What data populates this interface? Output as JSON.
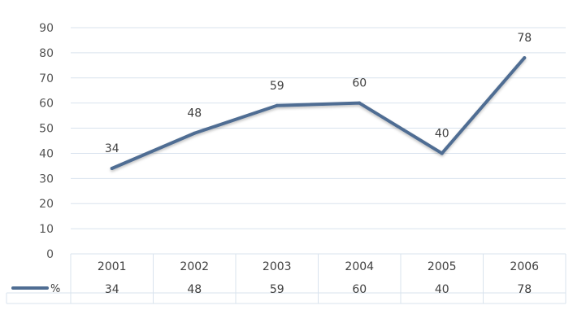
{
  "chart_data": {
    "type": "line",
    "categories": [
      "2001",
      "2002",
      "2003",
      "2004",
      "2005",
      "2006"
    ],
    "series": [
      {
        "name": "%",
        "values": [
          34,
          48,
          59,
          60,
          40,
          78
        ]
      }
    ],
    "ylim": [
      0,
      90
    ],
    "yticks": [
      "0",
      "10",
      "20",
      "30",
      "40",
      "50",
      "60",
      "70",
      "80",
      "90"
    ],
    "data_labels": [
      "34",
      "48",
      "59",
      "60",
      "40",
      "78"
    ],
    "grid": true,
    "legend": "data-table-left",
    "data_table": true,
    "line_color": "#4f6d93",
    "grid_color": "#d9e3ee"
  }
}
